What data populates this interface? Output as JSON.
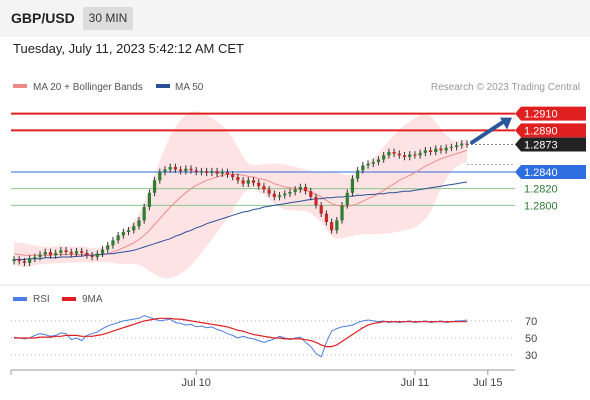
{
  "header": {
    "symbol": "GBP/USD",
    "timeframe": "30 MIN"
  },
  "timestamp": "Tuesday, July 11, 2023 5:42:12 AM CET",
  "copyright": "Research © 2023 Trading Central",
  "colors": {
    "up": "#2e7d32",
    "down": "#c62828",
    "ma20": "#f08a8a",
    "ma50": "#2b4f9a",
    "band": "#fde3e3",
    "resistance": "#e02020",
    "support": "#2f6ee0",
    "support_green": "#8cc78c",
    "arrow": "#2b579a",
    "rsi": "#4d7fe0",
    "rsi_ma": "#e02020"
  },
  "chart_data": [
    {
      "type": "candlestick",
      "legend": [
        "MA 20 + Bollinger Bands",
        "MA 50"
      ],
      "ylim": [
        1.272,
        1.293
      ],
      "levels": [
        {
          "value": 1.291,
          "label": "1.2910",
          "kind": "resistance"
        },
        {
          "value": 1.289,
          "label": "1.2890",
          "kind": "resistance"
        },
        {
          "value": 1.2873,
          "label": "1.2873",
          "kind": "last"
        },
        {
          "value": 1.284,
          "label": "1.2840",
          "kind": "support"
        },
        {
          "value": 1.282,
          "label": "1.2820",
          "kind": "support-minor"
        },
        {
          "value": 1.28,
          "label": "1.2800",
          "kind": "support-minor"
        }
      ],
      "close": [
        1.2735,
        1.2733,
        1.2731,
        1.2736,
        1.2738,
        1.2741,
        1.2744,
        1.274,
        1.2743,
        1.2746,
        1.2744,
        1.2742,
        1.2745,
        1.2743,
        1.274,
        1.2738,
        1.2742,
        1.2747,
        1.2752,
        1.2758,
        1.2764,
        1.2768,
        1.277,
        1.2775,
        1.2782,
        1.2798,
        1.2815,
        1.283,
        1.284,
        1.2843,
        1.2846,
        1.2843,
        1.2841,
        1.2844,
        1.2842,
        1.284,
        1.2841,
        1.2839,
        1.2841,
        1.2838,
        1.284,
        1.2837,
        1.2834,
        1.283,
        1.2826,
        1.283,
        1.2827,
        1.2823,
        1.2819,
        1.2814,
        1.281,
        1.2812,
        1.2814,
        1.2816,
        1.2819,
        1.2822,
        1.2817,
        1.281,
        1.28,
        1.279,
        1.278,
        1.277,
        1.2782,
        1.28,
        1.2815,
        1.2832,
        1.2842,
        1.2848,
        1.285,
        1.2852,
        1.2855,
        1.286,
        1.2864,
        1.2862,
        1.286,
        1.2858,
        1.2861,
        1.286,
        1.2863,
        1.2866,
        1.2864,
        1.2868,
        1.2866,
        1.2869,
        1.287,
        1.2872,
        1.2874,
        1.2873
      ],
      "ma20": [
        1.2742,
        1.2741,
        1.274,
        1.274,
        1.274,
        1.274,
        1.274,
        1.274,
        1.2741,
        1.2741,
        1.2741,
        1.2741,
        1.2741,
        1.2741,
        1.2741,
        1.274,
        1.274,
        1.2741,
        1.2742,
        1.2744,
        1.2746,
        1.2749,
        1.2752,
        1.2755,
        1.2759,
        1.2764,
        1.277,
        1.2777,
        1.2784,
        1.2791,
        1.2798,
        1.2804,
        1.281,
        1.2815,
        1.282,
        1.2824,
        1.2827,
        1.283,
        1.2832,
        1.2834,
        1.2836,
        1.2837,
        1.2837,
        1.2837,
        1.2836,
        1.2835,
        1.2834,
        1.2832,
        1.2831,
        1.2829,
        1.2826,
        1.2824,
        1.2822,
        1.2821,
        1.282,
        1.2819,
        1.2818,
        1.2816,
        1.2813,
        1.281,
        1.2806,
        1.2802,
        1.28,
        1.2799,
        1.2799,
        1.28,
        1.2802,
        1.2805,
        1.2808,
        1.2811,
        1.2814,
        1.2818,
        1.2822,
        1.2826,
        1.283,
        1.2833,
        1.2836,
        1.2839,
        1.2843,
        1.2847,
        1.285,
        1.2853,
        1.2856,
        1.2858,
        1.286,
        1.2862,
        1.2864,
        1.2866
      ],
      "ma50": [
        1.2735,
        1.2735,
        1.2735,
        1.2736,
        1.2736,
        1.2736,
        1.2737,
        1.2737,
        1.2737,
        1.2738,
        1.2738,
        1.2738,
        1.2739,
        1.2739,
        1.274,
        1.274,
        1.2741,
        1.2741,
        1.2742,
        1.2742,
        1.2743,
        1.2744,
        1.2745,
        1.2746,
        1.2748,
        1.275,
        1.2752,
        1.2754,
        1.2756,
        1.2758,
        1.276,
        1.2763,
        1.2765,
        1.2768,
        1.277,
        1.2773,
        1.2775,
        1.2778,
        1.278,
        1.2782,
        1.2784,
        1.2786,
        1.2788,
        1.279,
        1.2792,
        1.2793,
        1.2795,
        1.2796,
        1.2798,
        1.2799,
        1.28,
        1.2801,
        1.2802,
        1.2803,
        1.2804,
        1.2805,
        1.2806,
        1.2807,
        1.2808,
        1.2808,
        1.2809,
        1.2809,
        1.281,
        1.281,
        1.2811,
        1.2811,
        1.2812,
        1.2812,
        1.2813,
        1.2813,
        1.2814,
        1.2814,
        1.2815,
        1.2815,
        1.2816,
        1.2817,
        1.2817,
        1.2818,
        1.2819,
        1.282,
        1.2821,
        1.2822,
        1.2823,
        1.2824,
        1.2825,
        1.2826,
        1.2827,
        1.2828
      ],
      "forecast_arrow": {
        "from": 1.2873,
        "to": 1.291
      }
    },
    {
      "type": "line",
      "legend": [
        "RSI",
        "9MA"
      ],
      "ylim": [
        15,
        85
      ],
      "y_ticks": [
        70,
        50,
        30
      ],
      "x_ticks": [
        {
          "index": 35,
          "label": "Jul 10"
        },
        {
          "index": 77,
          "label": "Jul 11"
        },
        {
          "index": 91,
          "label": "Jul 15"
        }
      ],
      "rsi": [
        51,
        50,
        49,
        50,
        53,
        55,
        54,
        52,
        53,
        56,
        55,
        48,
        50,
        47,
        53,
        55,
        57,
        61,
        64,
        66,
        68,
        70,
        71,
        72,
        73,
        76,
        74,
        72,
        70,
        71,
        72,
        68,
        67,
        65,
        66,
        63,
        64,
        62,
        63,
        60,
        58,
        55,
        53,
        50,
        52,
        50,
        49,
        47,
        45,
        47,
        49,
        52,
        50,
        48,
        50,
        51,
        45,
        40,
        32,
        28,
        45,
        58,
        61,
        63,
        64,
        65,
        68,
        70,
        71,
        70,
        69,
        70,
        68,
        69,
        68,
        69,
        70,
        68,
        69,
        70,
        68,
        69,
        70,
        68,
        69,
        70,
        70,
        71
      ],
      "ma9": [
        50,
        50,
        50,
        50,
        50,
        51,
        51,
        51,
        52,
        52,
        53,
        53,
        53,
        52,
        52,
        52,
        53,
        54,
        56,
        58,
        60,
        62,
        64,
        66,
        68,
        70,
        71,
        72,
        73,
        73,
        73,
        72,
        72,
        71,
        70,
        69,
        68,
        67,
        66,
        65,
        64,
        63,
        61,
        59,
        58,
        56,
        54,
        53,
        52,
        51,
        50,
        50,
        49,
        49,
        49,
        49,
        48,
        47,
        45,
        42,
        40,
        40,
        42,
        46,
        50,
        54,
        58,
        62,
        65,
        67,
        68,
        69,
        69,
        69,
        69,
        69,
        69,
        69,
        69,
        69,
        69,
        69,
        69,
        69,
        69,
        69,
        69,
        69
      ]
    }
  ]
}
